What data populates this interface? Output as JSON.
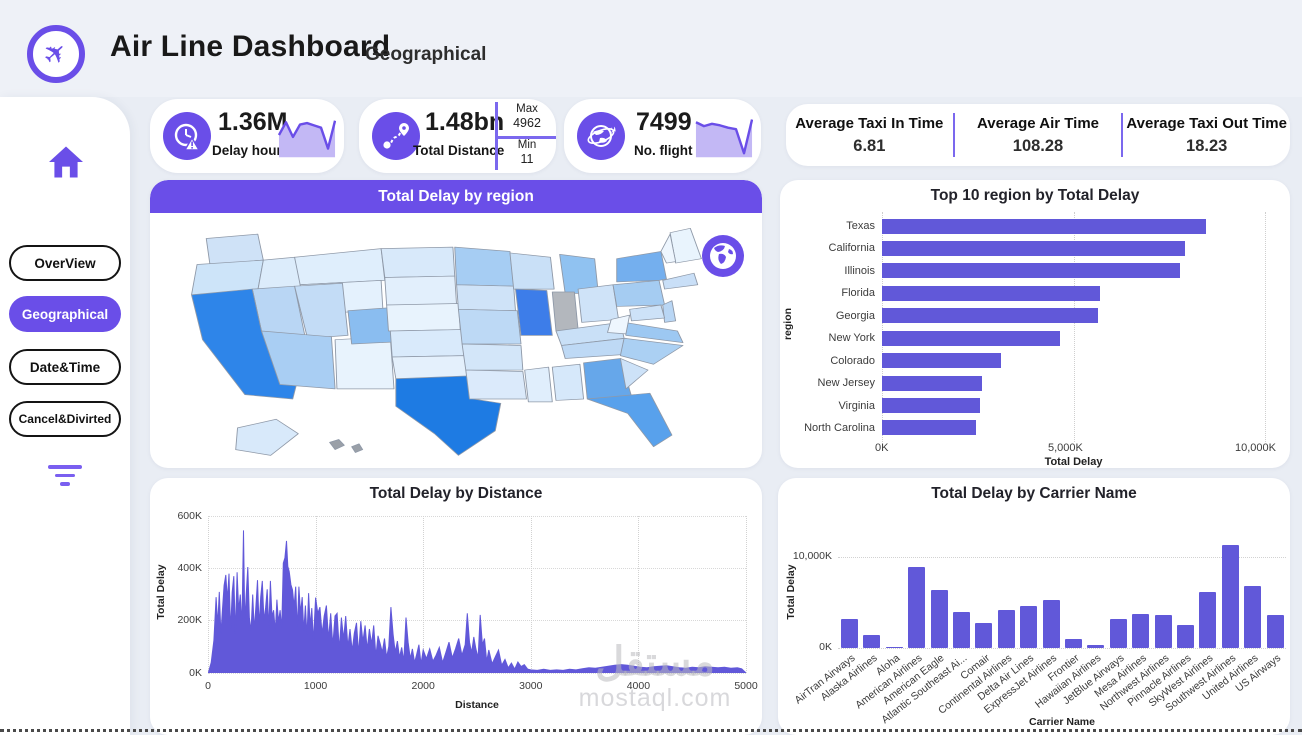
{
  "header": {
    "title": "Air Line Dashboard",
    "subtitle": "Geographical"
  },
  "colors": {
    "accent": "#6a4ee8",
    "bar": "#6158d9",
    "spark_line": "#6a4ee8",
    "spark_fill": "#c3b8f5",
    "divider": "#7b68ee"
  },
  "sidebar": {
    "items": [
      {
        "label": "OverView",
        "active": false
      },
      {
        "label": "Geographical",
        "active": true
      },
      {
        "label": "Date&Time",
        "active": false
      },
      {
        "label": "Cancel&Divirted",
        "active": false
      }
    ]
  },
  "kpis": [
    {
      "value": "1.36M",
      "label": "Delay hours",
      "icon": "delay-clock-warning-icon",
      "sparkline": [
        55,
        88,
        50,
        82,
        86,
        80,
        74,
        20,
        92
      ]
    },
    {
      "value": "1.48bn",
      "label": "Total Distance",
      "icon": "route-distance-icon",
      "max_label": "Max",
      "max_value": "4962",
      "min_label": "Min",
      "min_value": "11"
    },
    {
      "value": "7499",
      "label": "No. flight",
      "icon": "globe-plane-icon",
      "sparkline": [
        88,
        78,
        84,
        80,
        74,
        70,
        8,
        95
      ]
    }
  ],
  "averages": [
    {
      "label": "Average Taxi In Time",
      "value": "6.81"
    },
    {
      "label": "Average Air Time",
      "value": "108.28"
    },
    {
      "label": "Average Taxi Out Time",
      "value": "18.23"
    }
  ],
  "map": {
    "title": "Total Delay by region",
    "states": [
      {
        "name": "Washington",
        "fill": "#cfe2f7"
      },
      {
        "name": "Oregon",
        "fill": "#cde4f9"
      },
      {
        "name": "California",
        "fill": "#2e85e9"
      },
      {
        "name": "Idaho",
        "fill": "#dcecfb"
      },
      {
        "name": "Nevada",
        "fill": "#b9d6f4"
      },
      {
        "name": "Montana",
        "fill": "#dfeefc"
      },
      {
        "name": "Wyoming",
        "fill": "#e4f1fd"
      },
      {
        "name": "Utah",
        "fill": "#c3dcf6"
      },
      {
        "name": "Colorado",
        "fill": "#8abdf0"
      },
      {
        "name": "Arizona",
        "fill": "#a9cef3"
      },
      {
        "name": "New Mexico",
        "fill": "#e8f3fd"
      },
      {
        "name": "North Dakota",
        "fill": "#d8e9fa"
      },
      {
        "name": "South Dakota",
        "fill": "#e2effc"
      },
      {
        "name": "Nebraska",
        "fill": "#e8f3fd"
      },
      {
        "name": "Kansas",
        "fill": "#d9eafb"
      },
      {
        "name": "Oklahoma",
        "fill": "#e4f0fc"
      },
      {
        "name": "Texas",
        "fill": "#1e7be3"
      },
      {
        "name": "Minnesota",
        "fill": "#a6cdf3"
      },
      {
        "name": "Iowa",
        "fill": "#cfe3f8"
      },
      {
        "name": "Missouri",
        "fill": "#bdd9f5"
      },
      {
        "name": "Arkansas",
        "fill": "#d3e6f9"
      },
      {
        "name": "Louisiana",
        "fill": "#dbeafb"
      },
      {
        "name": "Wisconsin",
        "fill": "#c9e0f7"
      },
      {
        "name": "Illinois",
        "fill": "#3d7de9"
      },
      {
        "name": "Michigan",
        "fill": "#90c2f1"
      },
      {
        "name": "Indiana",
        "fill": "#b3b7bd"
      },
      {
        "name": "Ohio",
        "fill": "#cfe3f8"
      },
      {
        "name": "Kentucky",
        "fill": "#c9e0f7"
      },
      {
        "name": "Tennessee",
        "fill": "#bed9f5"
      },
      {
        "name": "Mississippi",
        "fill": "#e0eefc"
      },
      {
        "name": "Alabama",
        "fill": "#d6e8fa"
      },
      {
        "name": "Georgia",
        "fill": "#66a7ea"
      },
      {
        "name": "Florida",
        "fill": "#58a1ec"
      },
      {
        "name": "South Carolina",
        "fill": "#cde2f8"
      },
      {
        "name": "North Carolina",
        "fill": "#abd0f3"
      },
      {
        "name": "Virginia",
        "fill": "#9dc8f2"
      },
      {
        "name": "West Virginia",
        "fill": "#eef6fe"
      },
      {
        "name": "Pennsylvania",
        "fill": "#a5ccf2"
      },
      {
        "name": "New York",
        "fill": "#74afee"
      },
      {
        "name": "Maine",
        "fill": "#e9f4fd"
      },
      {
        "name": "New Hampshire",
        "fill": "#eef6fe"
      },
      {
        "name": "Massachusetts",
        "fill": "#c9dff7"
      },
      {
        "name": "New Jersey",
        "fill": "#b9d6f4"
      },
      {
        "name": "Maryland",
        "fill": "#cde2f8"
      },
      {
        "name": "Alaska",
        "fill": "#d8e9fa"
      },
      {
        "name": "Hawaii",
        "fill": "#9aa0a8"
      }
    ]
  },
  "watermark": {
    "arabic": "مستقل",
    "latin": "mostaql.com"
  },
  "chart_data": [
    {
      "id": "top10_region",
      "type": "bar",
      "orientation": "horizontal",
      "title": "Top 10 region by Total Delay",
      "xlabel": "Total Delay",
      "ylabel": "region",
      "xlim": [
        0,
        10000
      ],
      "unit": "K",
      "grid": "dotted-vertical",
      "xticks": [
        "0K",
        "5,000K",
        "10,000K"
      ],
      "categories": [
        "Texas",
        "California",
        "Illinois",
        "Florida",
        "Georgia",
        "New York",
        "Colorado",
        "New Jersey",
        "Virginia",
        "North Carolina"
      ],
      "values": [
        8450,
        7900,
        7780,
        5680,
        5630,
        4650,
        3100,
        2600,
        2570,
        2460
      ]
    },
    {
      "id": "delay_by_distance",
      "type": "area",
      "title": "Total Delay by Distance",
      "xlabel": "Distance",
      "ylabel": "Total Delay",
      "xlim": [
        0,
        5000
      ],
      "ylim": [
        0,
        600
      ],
      "unit": "K",
      "grid": "dotted",
      "yticks": [
        "0K",
        "200K",
        "400K",
        "600K"
      ],
      "xticks": [
        "0",
        "1000",
        "2000",
        "3000",
        "4000",
        "5000"
      ],
      "points": [
        [
          5,
          3
        ],
        [
          30,
          40
        ],
        [
          55,
          125
        ],
        [
          75,
          290
        ],
        [
          90,
          185
        ],
        [
          105,
          310
        ],
        [
          120,
          150
        ],
        [
          135,
          245
        ],
        [
          150,
          335
        ],
        [
          165,
          375
        ],
        [
          180,
          280
        ],
        [
          195,
          380
        ],
        [
          210,
          160
        ],
        [
          225,
          310
        ],
        [
          240,
          370
        ],
        [
          255,
          150
        ],
        [
          270,
          385
        ],
        [
          285,
          240
        ],
        [
          300,
          300
        ],
        [
          315,
          180
        ],
        [
          330,
          545
        ],
        [
          342,
          195
        ],
        [
          355,
          300
        ],
        [
          370,
          405
        ],
        [
          385,
          210
        ],
        [
          400,
          160
        ],
        [
          415,
          300
        ],
        [
          430,
          165
        ],
        [
          445,
          255
        ],
        [
          460,
          355
        ],
        [
          475,
          180
        ],
        [
          490,
          290
        ],
        [
          505,
          352
        ],
        [
          520,
          200
        ],
        [
          535,
          250
        ],
        [
          550,
          320
        ],
        [
          565,
          170
        ],
        [
          580,
          352
        ],
        [
          595,
          215
        ],
        [
          610,
          240
        ],
        [
          625,
          160
        ],
        [
          640,
          280
        ],
        [
          655,
          195
        ],
        [
          670,
          240
        ],
        [
          685,
          170
        ],
        [
          700,
          420
        ],
        [
          715,
          440
        ],
        [
          730,
          505
        ],
        [
          742,
          408
        ],
        [
          755,
          388
        ],
        [
          770,
          338
        ],
        [
          785,
          318
        ],
        [
          800,
          255
        ],
        [
          815,
          330
        ],
        [
          830,
          170
        ],
        [
          845,
          330
        ],
        [
          860,
          230
        ],
        [
          875,
          290
        ],
        [
          890,
          160
        ],
        [
          905,
          258
        ],
        [
          920,
          140
        ],
        [
          935,
          305
        ],
        [
          950,
          180
        ],
        [
          965,
          248
        ],
        [
          980,
          120
        ],
        [
          1000,
          288
        ],
        [
          1020,
          228
        ],
        [
          1040,
          252
        ],
        [
          1060,
          150
        ],
        [
          1080,
          218
        ],
        [
          1100,
          258
        ],
        [
          1120,
          130
        ],
        [
          1140,
          228
        ],
        [
          1160,
          105
        ],
        [
          1180,
          218
        ],
        [
          1200,
          228
        ],
        [
          1220,
          90
        ],
        [
          1240,
          212
        ],
        [
          1260,
          130
        ],
        [
          1280,
          218
        ],
        [
          1300,
          100
        ],
        [
          1320,
          168
        ],
        [
          1340,
          85
        ],
        [
          1360,
          152
        ],
        [
          1380,
          192
        ],
        [
          1400,
          75
        ],
        [
          1420,
          198
        ],
        [
          1440,
          120
        ],
        [
          1460,
          182
        ],
        [
          1480,
          90
        ],
        [
          1500,
          168
        ],
        [
          1520,
          110
        ],
        [
          1540,
          182
        ],
        [
          1560,
          65
        ],
        [
          1580,
          142
        ],
        [
          1600,
          112
        ],
        [
          1620,
          80
        ],
        [
          1640,
          132
        ],
        [
          1660,
          60
        ],
        [
          1680,
          102
        ],
        [
          1700,
          252
        ],
        [
          1720,
          148
        ],
        [
          1740,
          80
        ],
        [
          1760,
          122
        ],
        [
          1780,
          60
        ],
        [
          1800,
          98
        ],
        [
          1820,
          45
        ],
        [
          1840,
          212
        ],
        [
          1860,
          118
        ],
        [
          1880,
          55
        ],
        [
          1900,
          92
        ],
        [
          1920,
          40
        ],
        [
          1940,
          72
        ],
        [
          1960,
          108
        ],
        [
          1980,
          35
        ],
        [
          2000,
          88
        ],
        [
          2030,
          55
        ],
        [
          2060,
          92
        ],
        [
          2090,
          45
        ],
        [
          2120,
          68
        ],
        [
          2150,
          98
        ],
        [
          2180,
          40
        ],
        [
          2210,
          78
        ],
        [
          2240,
          118
        ],
        [
          2270,
          58
        ],
        [
          2300,
          92
        ],
        [
          2330,
          132
        ],
        [
          2360,
          68
        ],
        [
          2390,
          108
        ],
        [
          2410,
          228
        ],
        [
          2430,
          118
        ],
        [
          2450,
          78
        ],
        [
          2470,
          138
        ],
        [
          2490,
          92
        ],
        [
          2510,
          58
        ],
        [
          2530,
          222
        ],
        [
          2550,
          108
        ],
        [
          2570,
          132
        ],
        [
          2590,
          45
        ],
        [
          2610,
          88
        ],
        [
          2640,
          35
        ],
        [
          2670,
          62
        ],
        [
          2700,
          88
        ],
        [
          2730,
          30
        ],
        [
          2760,
          52
        ],
        [
          2790,
          20
        ],
        [
          2820,
          38
        ],
        [
          2850,
          15
        ],
        [
          2880,
          42
        ],
        [
          2910,
          25
        ],
        [
          2940,
          32
        ],
        [
          2970,
          15
        ],
        [
          3000,
          12
        ],
        [
          3060,
          10
        ],
        [
          3120,
          14
        ],
        [
          3180,
          10
        ],
        [
          3240,
          12
        ],
        [
          3300,
          10
        ],
        [
          3360,
          14
        ],
        [
          3420,
          12
        ],
        [
          3480,
          16
        ],
        [
          3540,
          20
        ],
        [
          3600,
          18
        ],
        [
          3660,
          22
        ],
        [
          3720,
          26
        ],
        [
          3780,
          30
        ],
        [
          3840,
          32
        ],
        [
          3900,
          30
        ],
        [
          3960,
          26
        ],
        [
          4020,
          22
        ],
        [
          4080,
          20
        ],
        [
          4140,
          24
        ],
        [
          4200,
          26
        ],
        [
          4260,
          28
        ],
        [
          4320,
          24
        ],
        [
          4380,
          20
        ],
        [
          4440,
          18
        ],
        [
          4500,
          22
        ],
        [
          4560,
          20
        ],
        [
          4620,
          24
        ],
        [
          4680,
          22
        ],
        [
          4740,
          20
        ],
        [
          4800,
          22
        ],
        [
          4860,
          18
        ],
        [
          4920,
          20
        ],
        [
          4960,
          16
        ]
      ]
    },
    {
      "id": "delay_by_carrier",
      "type": "bar",
      "orientation": "vertical",
      "title": "Total Delay by Carrier Name",
      "xlabel": "Carrier Name",
      "ylabel": "Total Delay",
      "ylim": [
        0,
        12000
      ],
      "unit": "K",
      "grid": "dotted-horizontal",
      "yticks": [
        "0K",
        "10,000K"
      ],
      "categories": [
        "AirTran Airways",
        "Alaska Airlines",
        "Aloha",
        "American Airlines",
        "American Eagle",
        "Atlantic Southeast Ai...",
        "Comair",
        "Continental Airlines",
        "Delta Air Lines",
        "ExpressJet Airlines",
        "Frontier",
        "Hawaiian Airlines",
        "JetBlue Airways",
        "Mesa Airlines",
        "Northwest Airlines",
        "Pinnacle Airlines",
        "SkyWest Airlines",
        "Southwest Airlines",
        "United Airlines",
        "US Airways"
      ],
      "values": [
        3150,
        1480,
        150,
        8890,
        6370,
        3960,
        2740,
        4150,
        4590,
        5260,
        1000,
        370,
        3150,
        3780,
        3590,
        2480,
        6110,
        11370,
        6810,
        3670
      ]
    }
  ]
}
